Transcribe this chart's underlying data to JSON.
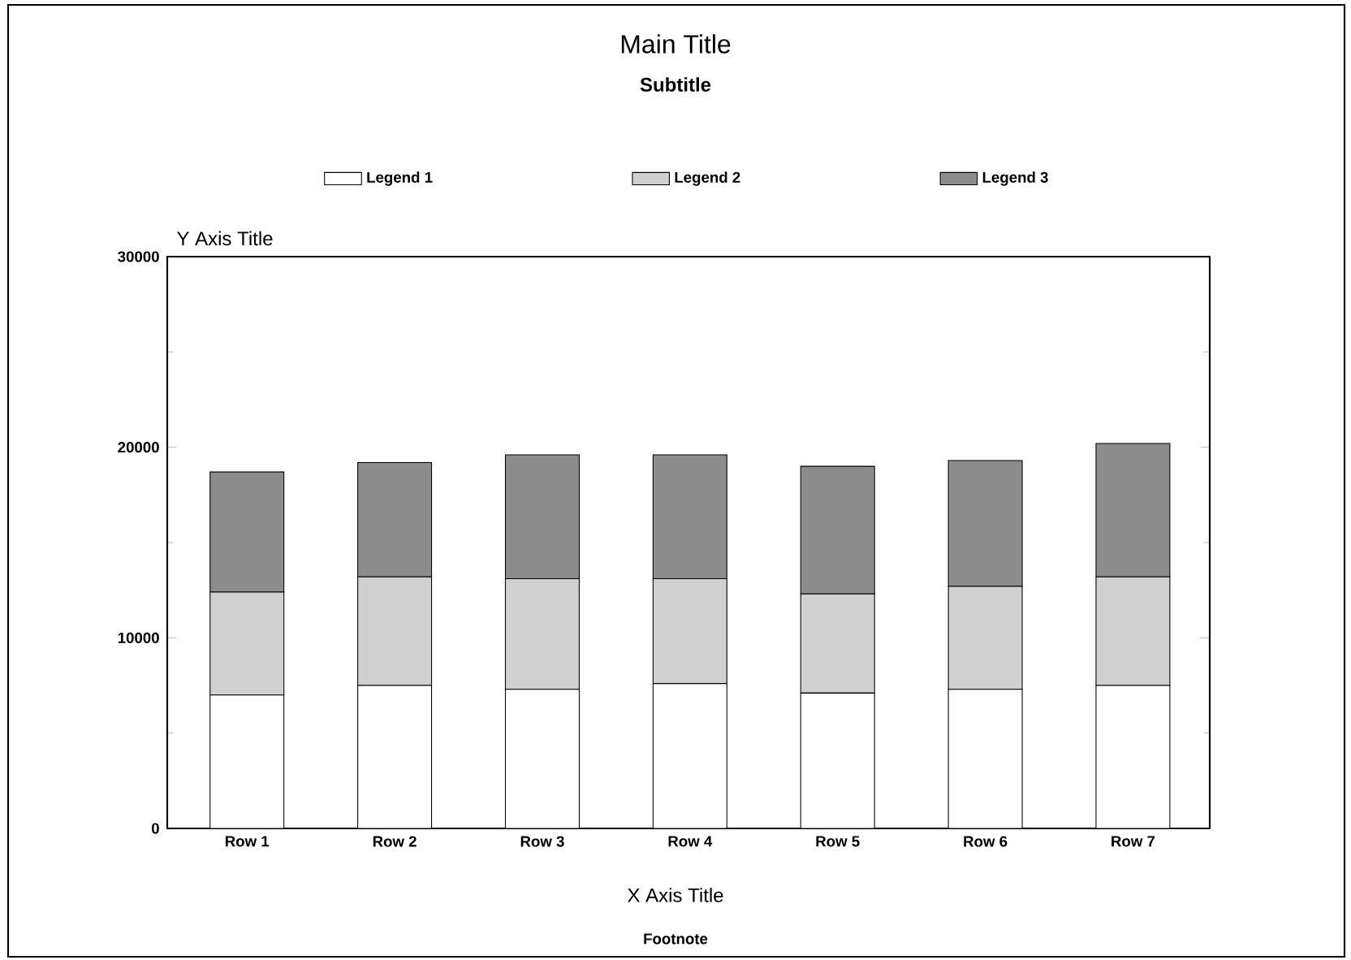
{
  "chart_data": {
    "type": "bar",
    "title": "Main Title",
    "subtitle": "Subtitle",
    "xlabel": "X Axis Title",
    "ylabel": "Y Axis Title",
    "annotations": [
      "Footnote"
    ],
    "categories": [
      "Row 1",
      "Row 2",
      "Row 3",
      "Row 4",
      "Row 5",
      "Row 6",
      "Row 7"
    ],
    "stacked": true,
    "legend": "top",
    "series": [
      {
        "name": "Legend 1",
        "color": "#ffffff",
        "values": [
          7000,
          7500,
          7300,
          7600,
          7100,
          7300,
          7500
        ]
      },
      {
        "name": "Legend 2",
        "color": "#d0d0d0",
        "values": [
          5400,
          5700,
          5800,
          5500,
          5200,
          5400,
          5700
        ]
      },
      {
        "name": "Legend 3",
        "color": "#8c8c8c",
        "values": [
          6300,
          6000,
          6500,
          6500,
          6700,
          6600,
          7000
        ]
      }
    ],
    "ylim": [
      0,
      30000
    ],
    "yticks": [
      0,
      10000,
      20000,
      30000
    ],
    "grid": false
  }
}
